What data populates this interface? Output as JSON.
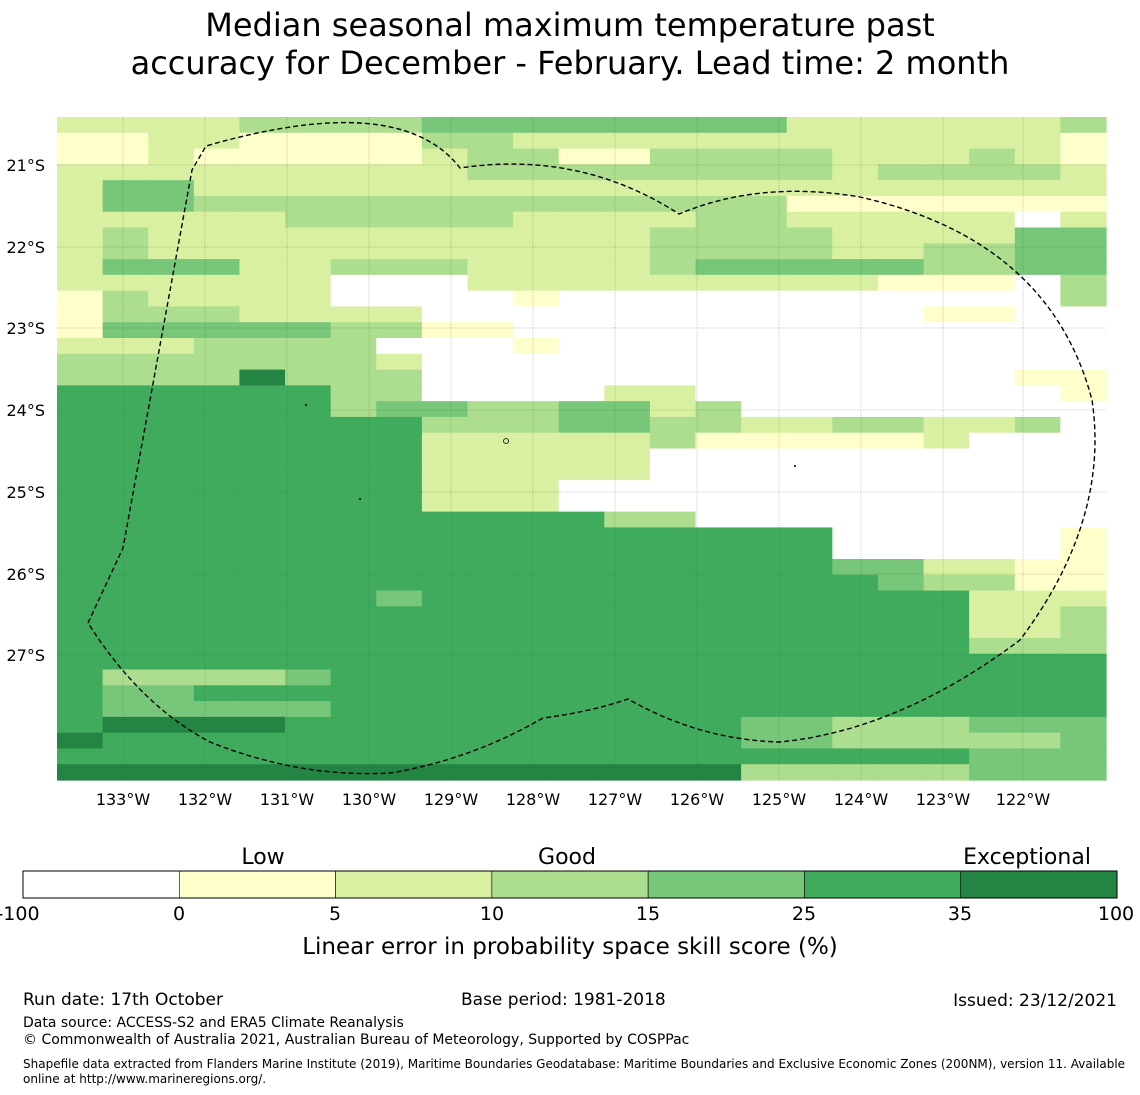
{
  "title": {
    "line1": "Median seasonal maximum temperature past",
    "line2": "accuracy for December - February. Lead time: 2 month"
  },
  "map": {
    "lat_labels": [
      "21°S",
      "22°S",
      "23°S",
      "24°S",
      "25°S",
      "26°S",
      "27°S"
    ],
    "lon_labels": [
      "133°W",
      "132°W",
      "131°W",
      "130°W",
      "129°W",
      "128°W",
      "127°W",
      "126°W",
      "125°W",
      "124°W",
      "123°W",
      "122°W"
    ],
    "grid_rows": [
      "22223333444444442222223",
      "11221111332222222222221",
      "11211111233113333222321",
      "22222222233333333233332",
      "24422222222222222222222",
      "24433333333333331111111",
      "22222333332222332222202",
      "23222222222223333222244",
      "23222222222223333223344",
      "24442233322223444443344",
      "22222200022222222211103",
      "13222200001000000000003",
      "13332222000000000001100",
      "14444433110000000000000",
      "22233330001000000000000",
      "33333332000000000000000",
      "33336333000000000000011",
      "55555533000022000000001",
      "55555534433442300000000",
      "55555555333443322332230",
      "55555555222223111112000",
      "55555555222220000000000",
      "55555555222220000000000",
      "55555555222000000000000",
      "55555555222000000000000",
      "55555555555533000000000",
      "55555555555555555000001",
      "55555555555555555000001",
      "55555555555555555442211",
      "55555555555555555543311",
      "55555554555555555555222",
      "55555555555555555555223",
      "55555555555555555555223",
      "55555555555555555555333",
      "55555555555555555555555",
      "53333455555555555555555",
      "54455555555555555555555",
      "54444455555555555555555",
      "56666555555555544333444",
      "65555555555555544333334",
      "55555555555555555555444",
      "66666666666666633333444"
    ],
    "bin_colors": [
      "#ffffff",
      "#ffffcc",
      "#d9f0a3",
      "#addd8e",
      "#78c679",
      "#41ab5d",
      "#238443"
    ]
  },
  "colorbar": {
    "category_labels": [
      "Low",
      "Good",
      "Exceptional"
    ],
    "tick_labels": [
      "-100",
      "0",
      "5",
      "10",
      "15",
      "25",
      "35",
      "100"
    ],
    "label": "Linear error in probability space skill score (%)"
  },
  "footer": {
    "run_date": "Run date: 17th October",
    "base_period": "Base period: 1981-2018",
    "issued": "Issued: 23/12/2021",
    "data_source": "Data source: ACCESS-S2 and ERA5 Climate Reanalysis",
    "copyright": "© Commonwealth of Australia 2021, Australian Bureau of Meteorology, Supported by COSPPac",
    "shapefile": "Shapefile data extracted from Flanders Marine Institute (2019), Maritime Boundaries Geodatabase: Maritime Boundaries and Exclusive Economic Zones (200NM), version 11. Available online at http://www.marineregions.org/."
  }
}
